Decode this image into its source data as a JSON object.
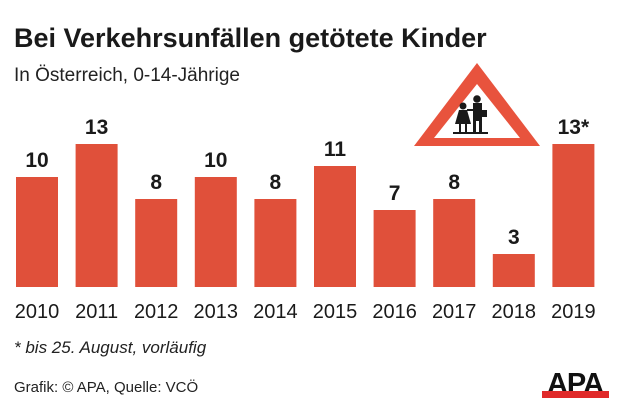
{
  "chart_data": {
    "type": "bar",
    "title": "Bei Verkehrsunfällen getötete Kinder",
    "subtitle": "In Österreich, 0-14-Jährige",
    "categories": [
      "2010",
      "2011",
      "2012",
      "2013",
      "2014",
      "2015",
      "2016",
      "2017",
      "2018",
      "2019"
    ],
    "values": [
      10,
      13,
      8,
      10,
      8,
      11,
      7,
      8,
      3,
      13
    ],
    "data_labels": [
      "10",
      "13",
      "8",
      "10",
      "8",
      "11",
      "7",
      "8",
      "3",
      "13*"
    ],
    "xlabel": "",
    "ylabel": "",
    "ylim": [
      0,
      13
    ],
    "grid": false,
    "bar_color": "#e0503a"
  },
  "footnote": "* bis 25. August, vorläufig",
  "source": "Grafik: © APA, Quelle: VCÖ",
  "logo": {
    "text": "APA",
    "color": "#e02a2a"
  },
  "icon": "school-children-warning-sign"
}
